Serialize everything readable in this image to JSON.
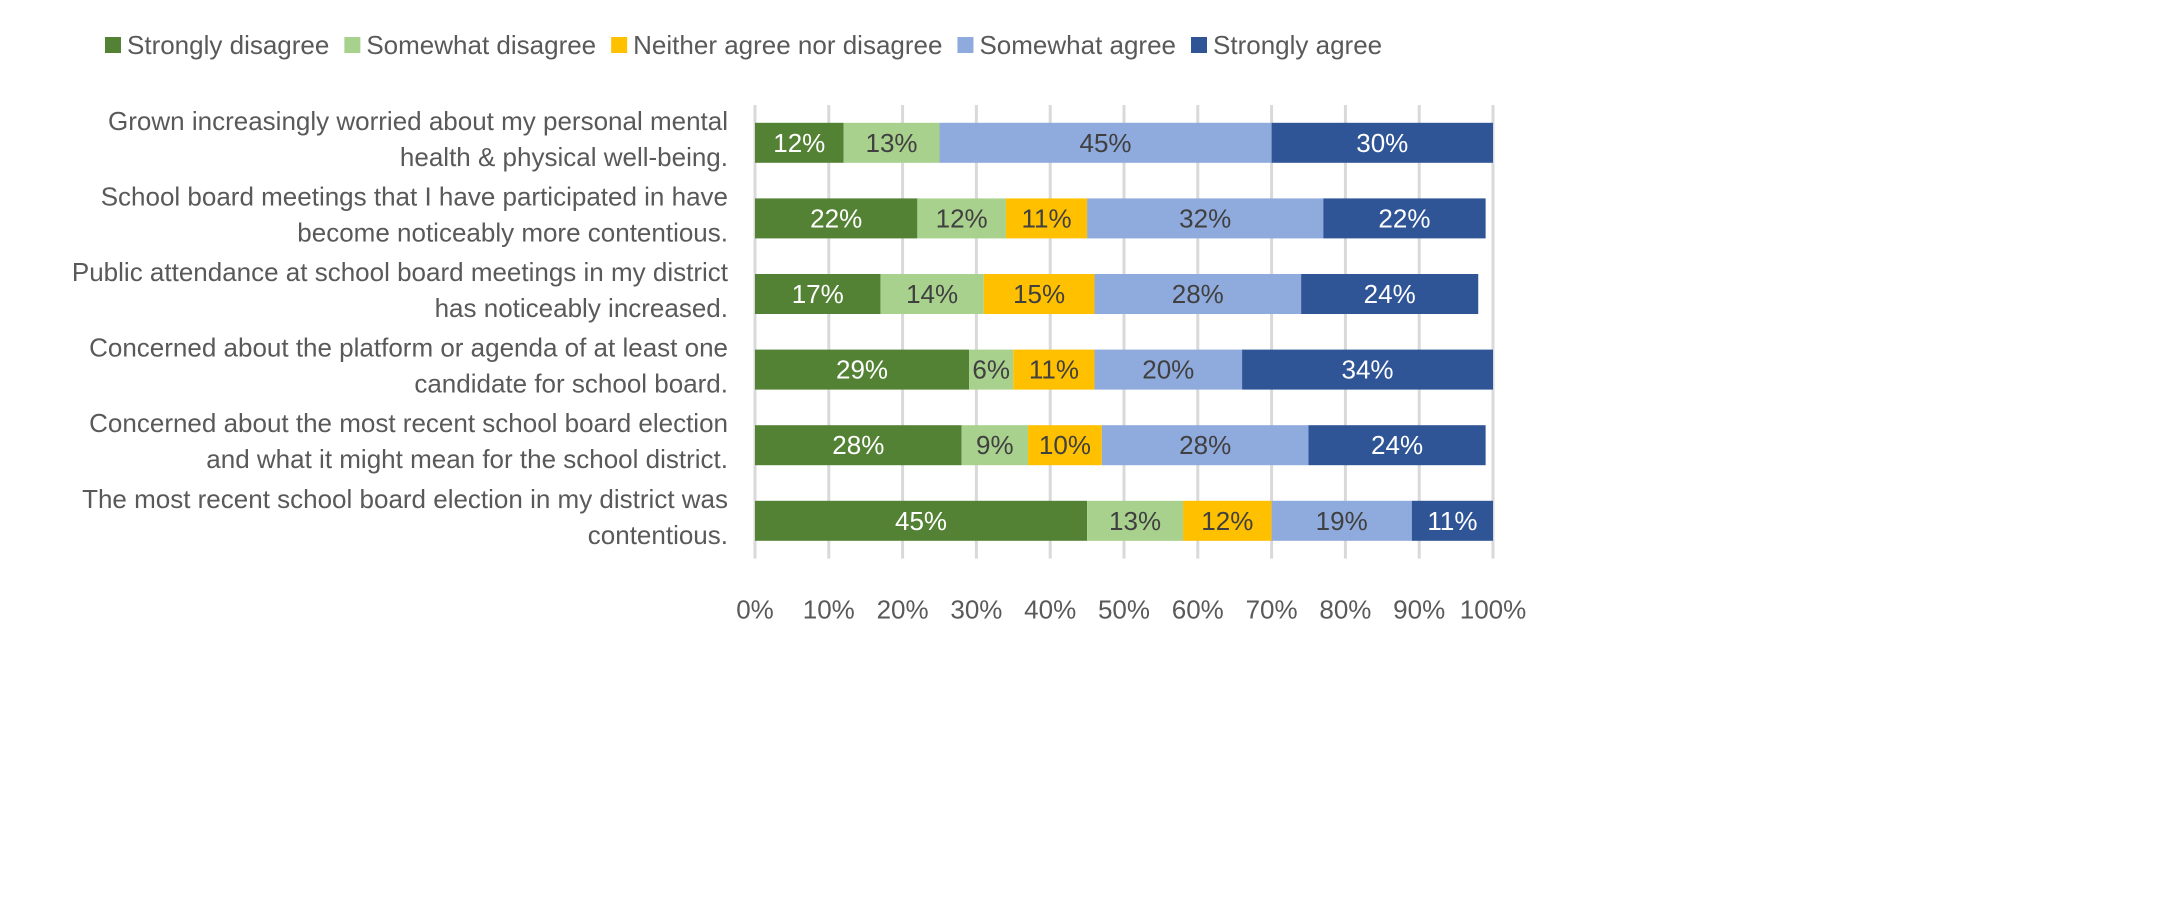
{
  "chart_data": {
    "type": "bar",
    "orientation": "horizontal",
    "stacked": true,
    "categories": [
      [
        "Grown increasingly worried about my personal mental",
        "health & physical well-being."
      ],
      [
        "School board meetings that I have participated in have",
        "become noticeably more contentious."
      ],
      [
        "Public attendance at school board meetings in my district",
        "has noticeably increased."
      ],
      [
        "Concerned about the platform or agenda of at least one",
        "candidate for school board."
      ],
      [
        "Concerned about the most recent school board election",
        "and what it might mean for the school district."
      ],
      [
        "The most recent school board election in my district was",
        "contentious."
      ]
    ],
    "series": [
      {
        "name": "Strongly disagree",
        "color": "#548235",
        "label_color": "#ffffff",
        "values": [
          12,
          22,
          17,
          29,
          28,
          45
        ]
      },
      {
        "name": "Somewhat disagree",
        "color": "#A9D18E",
        "label_color": "#404040",
        "values": [
          13,
          12,
          14,
          6,
          9,
          13
        ]
      },
      {
        "name": "Neither agree nor disagree",
        "color": "#FFC000",
        "label_color": "#404040",
        "values": [
          0,
          11,
          15,
          11,
          10,
          12
        ]
      },
      {
        "name": "Somewhat agree",
        "color": "#8FAADC",
        "label_color": "#404040",
        "values": [
          45,
          32,
          28,
          20,
          28,
          19
        ]
      },
      {
        "name": "Strongly agree",
        "color": "#2F5597",
        "label_color": "#ffffff",
        "values": [
          30,
          22,
          24,
          34,
          24,
          11
        ]
      }
    ],
    "xlim": [
      0,
      100
    ],
    "xticks": [
      "0%",
      "10%",
      "20%",
      "30%",
      "40%",
      "50%",
      "60%",
      "70%",
      "80%",
      "90%",
      "100%"
    ],
    "grid": true,
    "legend_position": "top",
    "value_suffix": "%"
  }
}
